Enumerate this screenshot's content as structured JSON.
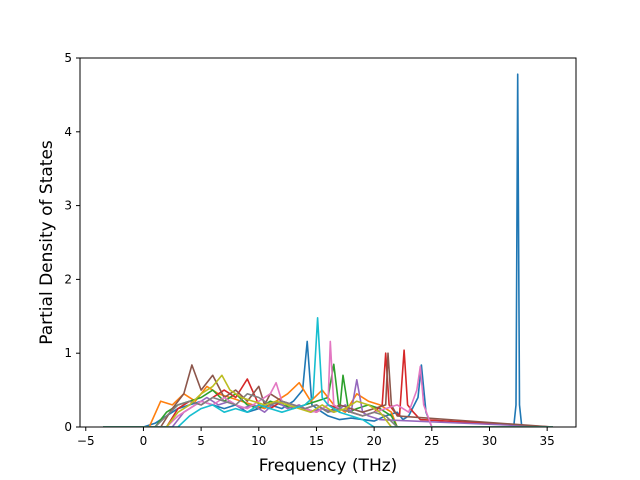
{
  "chart_data": {
    "type": "line",
    "title": "",
    "xlabel": "Frequency (THz)",
    "ylabel": "Partial Density of States",
    "xlim": [
      -5.5,
      37.5
    ],
    "ylim": [
      0,
      5
    ],
    "x_ticks": [
      -5,
      0,
      5,
      10,
      15,
      20,
      25,
      30,
      35
    ],
    "y_ticks": [
      0,
      1,
      2,
      3,
      4,
      5
    ],
    "grid": false,
    "legend": "none",
    "colors": [
      "#1f77b4",
      "#ff7f0e",
      "#2ca02c",
      "#d62728",
      "#9467bd",
      "#8c564b",
      "#e377c2",
      "#7f7f7f",
      "#bcbd22",
      "#17becf"
    ],
    "series": [
      {
        "x": [
          -3.5,
          0,
          1,
          2,
          3,
          4,
          5,
          6,
          7,
          8,
          9,
          10,
          11,
          12,
          13,
          13.8,
          14.2,
          14.6,
          15.5,
          16,
          17,
          18,
          19,
          20,
          21,
          22,
          22.5,
          23,
          23.8,
          24.1,
          24.5,
          25,
          30,
          32.1,
          32.3,
          32.45,
          32.6,
          32.8,
          35.5
        ],
        "y": [
          0,
          0,
          0.05,
          0.15,
          0.25,
          0.3,
          0.35,
          0.3,
          0.25,
          0.3,
          0.2,
          0.25,
          0.3,
          0.25,
          0.35,
          0.5,
          1.16,
          0.3,
          0.2,
          0.15,
          0.1,
          0.12,
          0.1,
          0.08,
          0.15,
          0.2,
          0.1,
          0.15,
          0.4,
          0.84,
          0.2,
          0,
          0,
          0,
          0.3,
          4.78,
          0.3,
          0,
          0
        ]
      },
      {
        "x": [
          -3.5,
          0.5,
          1.5,
          2.5,
          3.5,
          4.5,
          5.5,
          6.5,
          7.5,
          8.5,
          9.5,
          10.5,
          11.5,
          12.5,
          13.5,
          14.5,
          15.5,
          16.5,
          17.5,
          18.5,
          19.5,
          20.5,
          21.5,
          22,
          35.5
        ],
        "y": [
          0,
          0,
          0.35,
          0.3,
          0.45,
          0.35,
          0.55,
          0.45,
          0.4,
          0.35,
          0.3,
          0.25,
          0.35,
          0.45,
          0.6,
          0.35,
          0.5,
          0.3,
          0.2,
          0.45,
          0.35,
          0.3,
          0.2,
          0,
          0
        ]
      },
      {
        "x": [
          -3.5,
          1,
          2,
          3,
          4,
          5,
          6,
          7,
          8,
          9,
          10,
          11,
          12,
          13,
          14,
          15,
          16,
          16.5,
          17,
          17.3,
          17.8,
          18.5,
          19.5,
          20.5,
          21.5,
          22,
          35.5
        ],
        "y": [
          0,
          0,
          0.2,
          0.3,
          0.35,
          0.4,
          0.5,
          0.35,
          0.45,
          0.3,
          0.25,
          0.35,
          0.3,
          0.25,
          0.3,
          0.35,
          0.4,
          0.85,
          0.2,
          0.7,
          0.2,
          0.25,
          0.3,
          0.25,
          0.15,
          0,
          0
        ]
      },
      {
        "x": [
          -3.5,
          2,
          3,
          4,
          5,
          6,
          7,
          8,
          9,
          10,
          11,
          12,
          13,
          14,
          15,
          16,
          17,
          18,
          19,
          20,
          20.7,
          21,
          21.3,
          21.8,
          22.2,
          22.6,
          22.9,
          23.4,
          24,
          35.5
        ],
        "y": [
          0,
          0,
          0.25,
          0.35,
          0.3,
          0.4,
          0.5,
          0.4,
          0.65,
          0.3,
          0.25,
          0.35,
          0.3,
          0.25,
          0.2,
          0.3,
          0.25,
          0.2,
          0.15,
          0.2,
          0.3,
          1.0,
          0.3,
          0.2,
          0.15,
          1.04,
          0.3,
          0.2,
          0.1,
          0
        ]
      },
      {
        "x": [
          -3.5,
          2.5,
          3.5,
          4.5,
          5.5,
          6.5,
          7.5,
          8.5,
          9.5,
          10.5,
          11.5,
          12.5,
          13.5,
          14.5,
          15.5,
          16.5,
          17.5,
          18,
          18.5,
          19,
          19.5,
          20.5,
          35.5
        ],
        "y": [
          0,
          0,
          0.2,
          0.3,
          0.4,
          0.3,
          0.35,
          0.25,
          0.3,
          0.2,
          0.35,
          0.25,
          0.3,
          0.2,
          0.25,
          0.2,
          0.3,
          0.2,
          0.64,
          0.2,
          0.15,
          0.1,
          0
        ]
      },
      {
        "x": [
          -3.5,
          1.5,
          2.5,
          3.5,
          4.2,
          5,
          6,
          7,
          8,
          9,
          10,
          10.5,
          11,
          12,
          13,
          14,
          15,
          16,
          17,
          18,
          19,
          20,
          21,
          21.2,
          21.5,
          22,
          35.5
        ],
        "y": [
          0,
          0,
          0.25,
          0.45,
          0.84,
          0.5,
          0.7,
          0.4,
          0.5,
          0.35,
          0.55,
          0.3,
          0.45,
          0.35,
          0.3,
          0.25,
          0.3,
          0.2,
          0.3,
          0.25,
          0.2,
          0.25,
          0.3,
          1.0,
          0.3,
          0.15,
          0
        ]
      },
      {
        "x": [
          -3.5,
          2,
          3,
          4,
          5,
          6,
          7,
          8,
          9,
          10,
          11,
          11.5,
          12,
          13,
          14,
          15,
          16,
          16.2,
          16.5,
          17,
          18,
          19,
          20,
          21,
          22,
          23,
          23.7,
          24,
          24.3,
          25,
          35.5
        ],
        "y": [
          0,
          0,
          0.15,
          0.25,
          0.35,
          0.3,
          0.4,
          0.3,
          0.25,
          0.35,
          0.45,
          0.6,
          0.35,
          0.3,
          0.25,
          0.2,
          0.3,
          1.16,
          0.3,
          0.25,
          0.2,
          0.15,
          0.2,
          0.25,
          0.3,
          0.2,
          0.5,
          0.82,
          0.3,
          0,
          0
        ]
      },
      {
        "x": [
          -3.5,
          1,
          2,
          3,
          4,
          5,
          6,
          7,
          8,
          9,
          10,
          11,
          12,
          13,
          14,
          15,
          16,
          17,
          18,
          19,
          20,
          21,
          22,
          35.5
        ],
        "y": [
          0,
          0,
          0.15,
          0.3,
          0.35,
          0.3,
          0.4,
          0.35,
          0.3,
          0.45,
          0.4,
          0.3,
          0.35,
          0.3,
          0.25,
          0.3,
          0.2,
          0.25,
          0.2,
          0.15,
          0.2,
          0.15,
          0,
          0
        ]
      },
      {
        "x": [
          -3.5,
          2,
          3,
          4,
          5,
          6,
          6.8,
          7.5,
          8.5,
          9.5,
          10.5,
          11.5,
          12.5,
          13.5,
          14.5,
          15.5,
          16.5,
          17.5,
          18.5,
          19.5,
          20.5,
          21.5,
          35.5
        ],
        "y": [
          0,
          0,
          0.2,
          0.3,
          0.45,
          0.55,
          0.7,
          0.5,
          0.4,
          0.35,
          0.3,
          0.35,
          0.3,
          0.25,
          0.2,
          0.3,
          0.2,
          0.25,
          0.35,
          0.3,
          0.2,
          0,
          0
        ]
      },
      {
        "x": [
          -3.5,
          3,
          4,
          5,
          6,
          7,
          8,
          9,
          10,
          11,
          12,
          13,
          14,
          14.7,
          15.1,
          15.5,
          16,
          17,
          18,
          19,
          20,
          35.5
        ],
        "y": [
          0,
          0,
          0.15,
          0.25,
          0.3,
          0.2,
          0.25,
          0.2,
          0.3,
          0.25,
          0.2,
          0.25,
          0.3,
          0.4,
          1.48,
          0.4,
          0.3,
          0.2,
          0.15,
          0.1,
          0,
          0
        ]
      }
    ]
  }
}
